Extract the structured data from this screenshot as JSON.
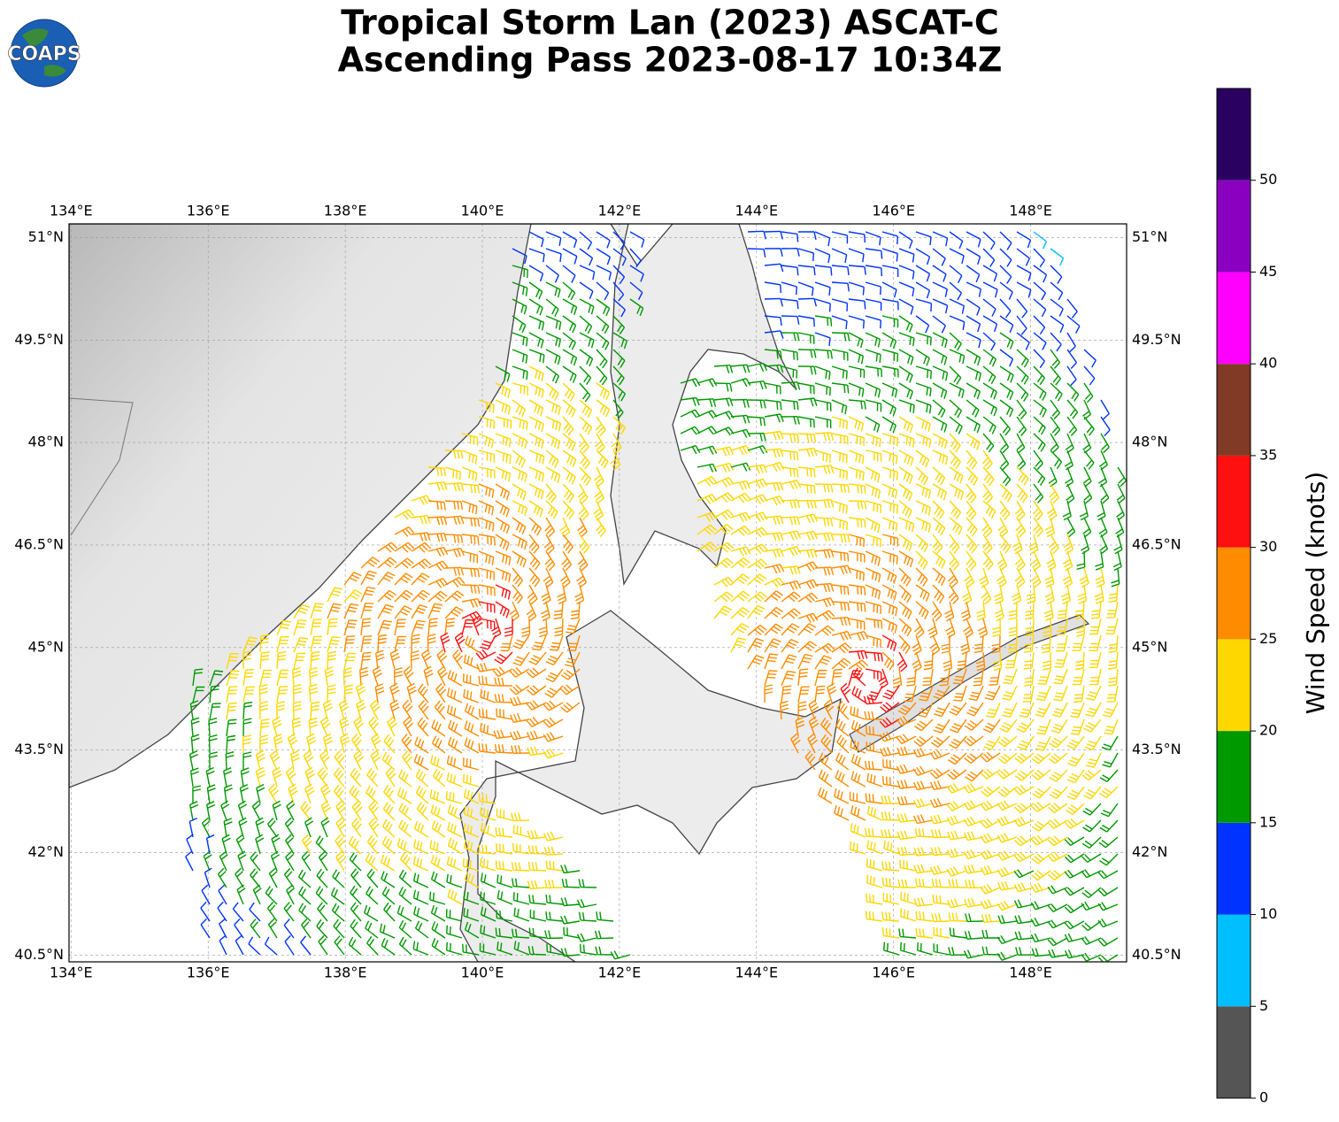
{
  "logo_text": "COAPS",
  "chart_data": {
    "type": "wind-barb-map",
    "title": "Tropical Storm Lan (2023) ASCAT-C",
    "subtitle": "Ascending Pass 2023-08-17 10:34Z",
    "xlim": [
      133.97,
      149.4
    ],
    "ylim": [
      40.4,
      51.2
    ],
    "xticks": [
      {
        "value": 134,
        "label": "134°E"
      },
      {
        "value": 136,
        "label": "136°E"
      },
      {
        "value": 138,
        "label": "138°E"
      },
      {
        "value": 140,
        "label": "140°E"
      },
      {
        "value": 142,
        "label": "142°E"
      },
      {
        "value": 144,
        "label": "144°E"
      },
      {
        "value": 146,
        "label": "146°E"
      },
      {
        "value": 148,
        "label": "148°E"
      }
    ],
    "yticks": [
      {
        "value": 51,
        "label": "51°N"
      },
      {
        "value": 49.5,
        "label": "49.5°N"
      },
      {
        "value": 48,
        "label": "48°N"
      },
      {
        "value": 46.5,
        "label": "46.5°N"
      },
      {
        "value": 45,
        "label": "45°N"
      },
      {
        "value": 43.5,
        "label": "43.5°N"
      },
      {
        "value": 42,
        "label": "42°N"
      },
      {
        "value": 40.5,
        "label": "40.5°N"
      }
    ],
    "grid": true,
    "colorbar": {
      "label": "Wind Speed (knots)",
      "lim": [
        0,
        55
      ],
      "bounds": [
        0,
        5,
        10,
        15,
        20,
        25,
        30,
        35,
        40,
        45,
        50,
        55
      ],
      "colors": [
        "#555555",
        "#00bfff",
        "#0033ff",
        "#009900",
        "#ffd700",
        "#ff8c00",
        "#ff1010",
        "#803a26",
        "#ff00ff",
        "#8b00c0",
        "#2a0060"
      ],
      "ticks": [
        0,
        5,
        10,
        15,
        20,
        25,
        30,
        35,
        40,
        45,
        50
      ]
    }
  }
}
